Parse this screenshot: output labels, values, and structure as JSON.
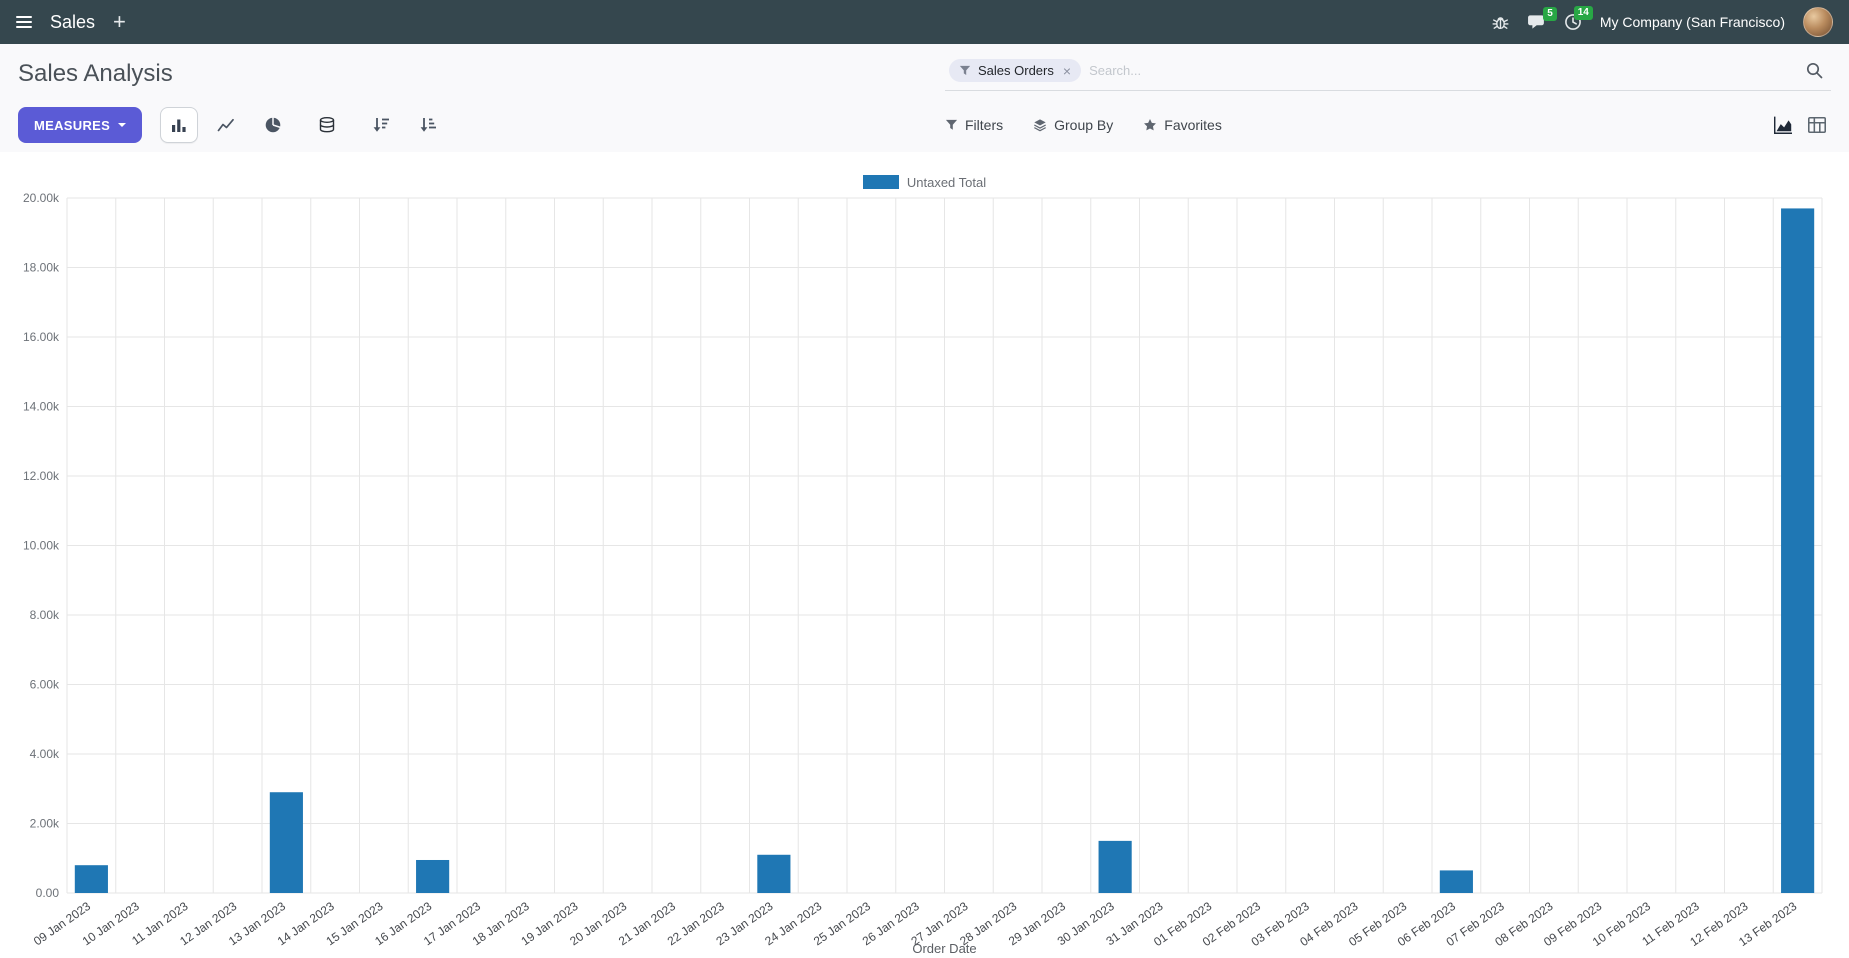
{
  "colors": {
    "navbar_bg": "#35474e",
    "accent": "#5b5bd6",
    "badge_green": "#28a745",
    "bar_blue": "#1f77b4"
  },
  "navbar": {
    "app_name": "Sales",
    "company_name": "My Company (San Francisco)",
    "messages_badge": "5",
    "activities_badge": "14"
  },
  "icons": {
    "plus": "+",
    "facet_remove": "×"
  },
  "control_panel": {
    "breadcrumb_title": "Sales Analysis",
    "measures_label": "Measures",
    "filters_label": "Filters",
    "group_by_label": "Group By",
    "favorites_label": "Favorites",
    "search": {
      "facet_label": "Sales Orders",
      "placeholder": "Search..."
    }
  },
  "chart_data": {
    "type": "bar",
    "title": "",
    "xlabel": "Order Date",
    "ylabel": "",
    "ylim": [
      0,
      20000
    ],
    "y_tick_step": 2000,
    "y_tick_labels": [
      "0.00",
      "2.00k",
      "4.00k",
      "6.00k",
      "8.00k",
      "10.00k",
      "12.00k",
      "14.00k",
      "16.00k",
      "18.00k",
      "20.00k"
    ],
    "grid": true,
    "legend_position": "top-center",
    "categories": [
      "09 Jan 2023",
      "10 Jan 2023",
      "11 Jan 2023",
      "12 Jan 2023",
      "13 Jan 2023",
      "14 Jan 2023",
      "15 Jan 2023",
      "16 Jan 2023",
      "17 Jan 2023",
      "18 Jan 2023",
      "19 Jan 2023",
      "20 Jan 2023",
      "21 Jan 2023",
      "22 Jan 2023",
      "23 Jan 2023",
      "24 Jan 2023",
      "25 Jan 2023",
      "26 Jan 2023",
      "27 Jan 2023",
      "28 Jan 2023",
      "29 Jan 2023",
      "30 Jan 2023",
      "31 Jan 2023",
      "01 Feb 2023",
      "02 Feb 2023",
      "03 Feb 2023",
      "04 Feb 2023",
      "05 Feb 2023",
      "06 Feb 2023",
      "07 Feb 2023",
      "08 Feb 2023",
      "09 Feb 2023",
      "10 Feb 2023",
      "11 Feb 2023",
      "12 Feb 2023",
      "13 Feb 2023"
    ],
    "series": [
      {
        "name": "Untaxed Total",
        "color": "#1f77b4",
        "values": [
          800,
          0,
          0,
          0,
          2900,
          0,
          0,
          950,
          0,
          0,
          0,
          0,
          0,
          0,
          1100,
          0,
          0,
          0,
          0,
          0,
          0,
          1500,
          0,
          0,
          0,
          0,
          0,
          0,
          650,
          0,
          0,
          0,
          0,
          0,
          0,
          19700
        ]
      }
    ]
  }
}
